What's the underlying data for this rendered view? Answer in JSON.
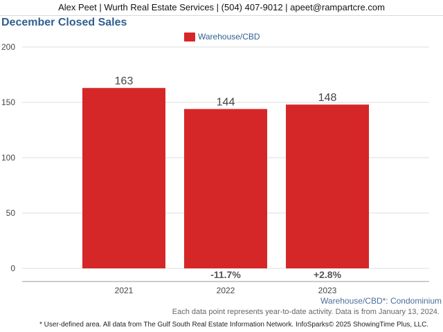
{
  "header": {
    "contact": "Alex Peet | Wurth Real Estate Services | (504) 407-9012 | apeet@rampartcre.com"
  },
  "chart_data": {
    "type": "bar",
    "title": "December Closed Sales",
    "categories": [
      "2021",
      "2022",
      "2023"
    ],
    "series": [
      {
        "name": "Warehouse/CBD",
        "values": [
          163,
          144,
          148
        ],
        "color": "#d62728"
      }
    ],
    "value_labels": [
      "163",
      "144",
      "148"
    ],
    "change_labels": [
      "",
      "-11.7%",
      "+2.8%"
    ],
    "yticks": [
      0,
      50,
      100,
      150,
      200
    ],
    "ytick_labels": [
      "0",
      "50",
      "100",
      "150",
      "200"
    ],
    "ylim": [
      0,
      200
    ],
    "grid": true,
    "legend_position": "top-center",
    "xlabel": "",
    "ylabel": ""
  },
  "notes": {
    "area_note": "Warehouse/CBD*: Condominium",
    "data_note": "Each data point represents year-to-date activity. Data is from January 13, 2024.",
    "source_note": "* User-defined area. All data from The Gulf South Real Estate Information Network. InfoSparks© 2025 ShowingTime Plus, LLC."
  }
}
